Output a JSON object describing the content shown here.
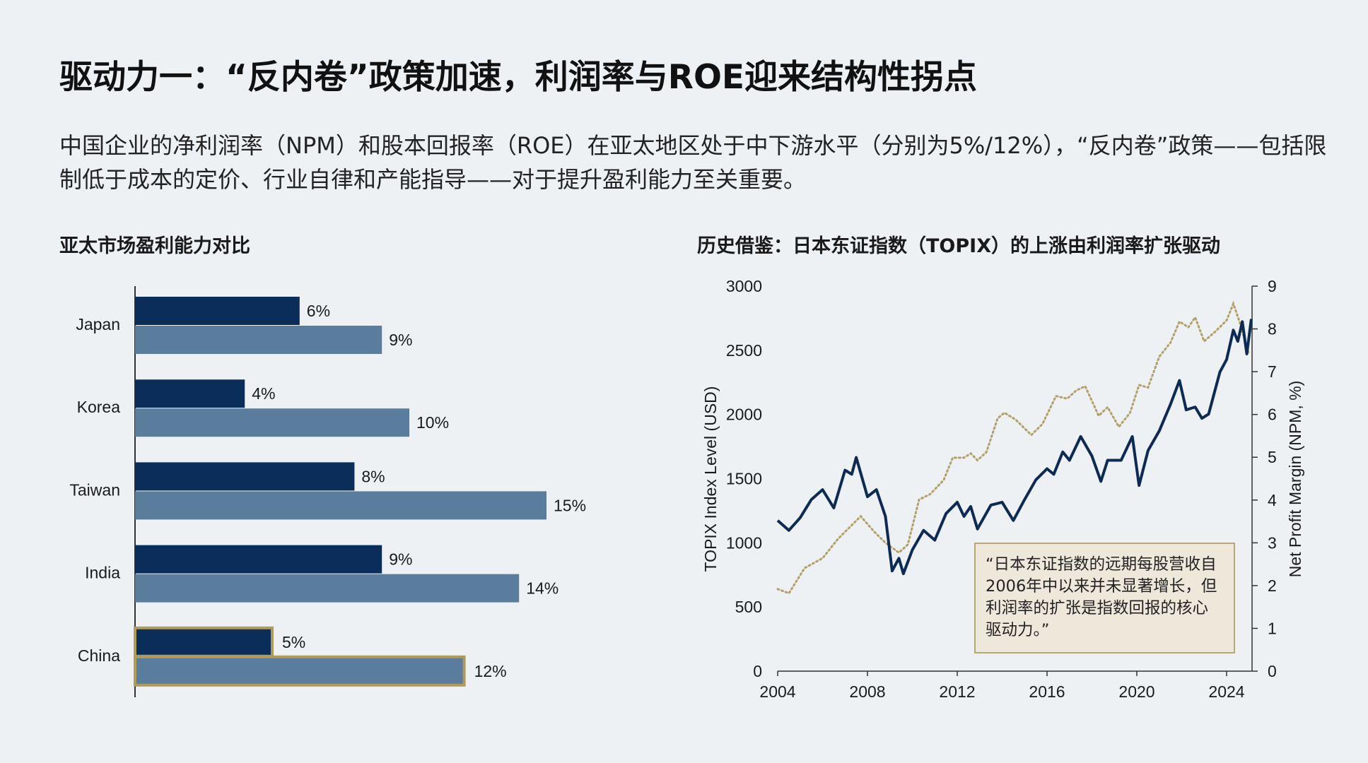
{
  "title": "驱动力一：“反内卷”政策加速，利润率与ROE迎来结构性拐点",
  "description": "中国企业的净利润率（NPM）和股本回报率（ROE）在亚太地区处于中下游水平（分别为5%/12%），“反内卷”政策——包括限制低于成本的定价、行业自律和产能指导——对于提升盈利能力至关重要。",
  "colors": {
    "background": "#edf1f4",
    "npm_bar": "#0a2d5a",
    "roe_bar": "#5a7d9e",
    "highlight_border": "#b09a5a",
    "topix_line": "#0d2a52",
    "npm_line": "#b3a06a"
  },
  "chart_data": [
    {
      "type": "bar",
      "orientation": "horizontal",
      "title": "亚太市场盈利能力对比",
      "categories": [
        "Japan",
        "Korea",
        "Taiwan",
        "India",
        "China"
      ],
      "series": [
        {
          "values": [
            6,
            4,
            8,
            9,
            5
          ],
          "labels": [
            "6%",
            "4%",
            "8%",
            "9%",
            "5%"
          ]
        },
        {
          "values": [
            9,
            10,
            15,
            14,
            12
          ],
          "labels": [
            "9%",
            "10%",
            "15%",
            "14%",
            "12%"
          ]
        }
      ],
      "highlighted_category": "China",
      "grid": false
    },
    {
      "type": "line",
      "title": "历史借鉴：日本东证指数（TOPIX）的上涨由利润率扩张驱动",
      "ylabel": "TOPIX Index Level (USD)",
      "y2label": "Net Profit Margin (NPM, %)",
      "xlim": [
        2004,
        2025.1
      ],
      "ylim": [
        0,
        3000
      ],
      "y2lim": [
        0,
        9
      ],
      "xticks": [
        "2004",
        "2008",
        "2012",
        "2016",
        "2020",
        "2024"
      ],
      "yticks": [
        "0",
        "500",
        "1000",
        "1500",
        "2000",
        "2500",
        "3000"
      ],
      "y2ticks": [
        "0",
        "1",
        "2",
        "3",
        "4",
        "5",
        "6",
        "7",
        "8",
        "9"
      ],
      "grid": false,
      "series": [
        {
          "style": "solid",
          "axis": "left",
          "points": [
            [
              2004.0,
              1174
            ],
            [
              2004.5,
              1097
            ],
            [
              2005.0,
              1195
            ],
            [
              2005.5,
              1337
            ],
            [
              2006.0,
              1414
            ],
            [
              2006.5,
              1272
            ],
            [
              2007.0,
              1566
            ],
            [
              2007.3,
              1534
            ],
            [
              2007.5,
              1665
            ],
            [
              2008.0,
              1359
            ],
            [
              2008.4,
              1414
            ],
            [
              2008.8,
              1206
            ],
            [
              2009.1,
              781
            ],
            [
              2009.4,
              879
            ],
            [
              2009.6,
              759
            ],
            [
              2010.0,
              945
            ],
            [
              2010.5,
              1097
            ],
            [
              2011.0,
              1021
            ],
            [
              2011.5,
              1228
            ],
            [
              2012.0,
              1316
            ],
            [
              2012.3,
              1206
            ],
            [
              2012.6,
              1283
            ],
            [
              2012.9,
              1108
            ],
            [
              2013.5,
              1294
            ],
            [
              2014.0,
              1316
            ],
            [
              2014.5,
              1174
            ],
            [
              2015.0,
              1337
            ],
            [
              2015.5,
              1490
            ],
            [
              2016.0,
              1577
            ],
            [
              2016.3,
              1534
            ],
            [
              2016.7,
              1708
            ],
            [
              2017.0,
              1643
            ],
            [
              2017.5,
              1828
            ],
            [
              2018.0,
              1676
            ],
            [
              2018.4,
              1479
            ],
            [
              2018.7,
              1643
            ],
            [
              2019.3,
              1643
            ],
            [
              2019.8,
              1828
            ],
            [
              2020.1,
              1447
            ],
            [
              2020.5,
              1719
            ],
            [
              2021.0,
              1872
            ],
            [
              2021.5,
              2079
            ],
            [
              2021.9,
              2265
            ],
            [
              2022.2,
              2036
            ],
            [
              2022.6,
              2058
            ],
            [
              2022.9,
              1970
            ],
            [
              2023.2,
              2003
            ],
            [
              2023.4,
              2134
            ],
            [
              2023.7,
              2330
            ],
            [
              2024.0,
              2428
            ],
            [
              2024.3,
              2657
            ],
            [
              2024.5,
              2570
            ],
            [
              2024.7,
              2723
            ],
            [
              2024.9,
              2472
            ],
            [
              2025.1,
              2744
            ]
          ]
        },
        {
          "style": "dotted",
          "axis": "right",
          "points": [
            [
              2004.0,
              1.92
            ],
            [
              2004.5,
              1.82
            ],
            [
              2005.2,
              2.41
            ],
            [
              2006.0,
              2.64
            ],
            [
              2006.7,
              3.1
            ],
            [
              2007.2,
              3.36
            ],
            [
              2007.7,
              3.62
            ],
            [
              2008.3,
              3.26
            ],
            [
              2008.8,
              3.0
            ],
            [
              2009.4,
              2.77
            ],
            [
              2009.8,
              2.96
            ],
            [
              2010.3,
              4.01
            ],
            [
              2010.8,
              4.14
            ],
            [
              2011.4,
              4.47
            ],
            [
              2011.8,
              4.99
            ],
            [
              2012.3,
              4.99
            ],
            [
              2012.6,
              5.09
            ],
            [
              2012.9,
              4.93
            ],
            [
              2013.3,
              5.12
            ],
            [
              2013.8,
              5.91
            ],
            [
              2014.1,
              6.04
            ],
            [
              2014.6,
              5.88
            ],
            [
              2015.3,
              5.52
            ],
            [
              2015.8,
              5.78
            ],
            [
              2016.4,
              6.43
            ],
            [
              2016.9,
              6.37
            ],
            [
              2017.3,
              6.56
            ],
            [
              2017.7,
              6.66
            ],
            [
              2018.3,
              5.97
            ],
            [
              2018.7,
              6.17
            ],
            [
              2019.2,
              5.71
            ],
            [
              2019.7,
              6.04
            ],
            [
              2020.1,
              6.69
            ],
            [
              2020.5,
              6.63
            ],
            [
              2021.0,
              7.35
            ],
            [
              2021.5,
              7.68
            ],
            [
              2021.9,
              8.17
            ],
            [
              2022.3,
              8.04
            ],
            [
              2022.6,
              8.27
            ],
            [
              2023.0,
              7.71
            ],
            [
              2023.5,
              7.94
            ],
            [
              2024.0,
              8.2
            ],
            [
              2024.3,
              8.59
            ],
            [
              2024.6,
              8.13
            ],
            [
              2025.0,
              7.4
            ]
          ]
        }
      ],
      "annotation": "“日本东证指数的远期每股营收自2006年中以来并未显著增长，但利润率的扩张是指数回报的核心驱动力。”"
    }
  ]
}
